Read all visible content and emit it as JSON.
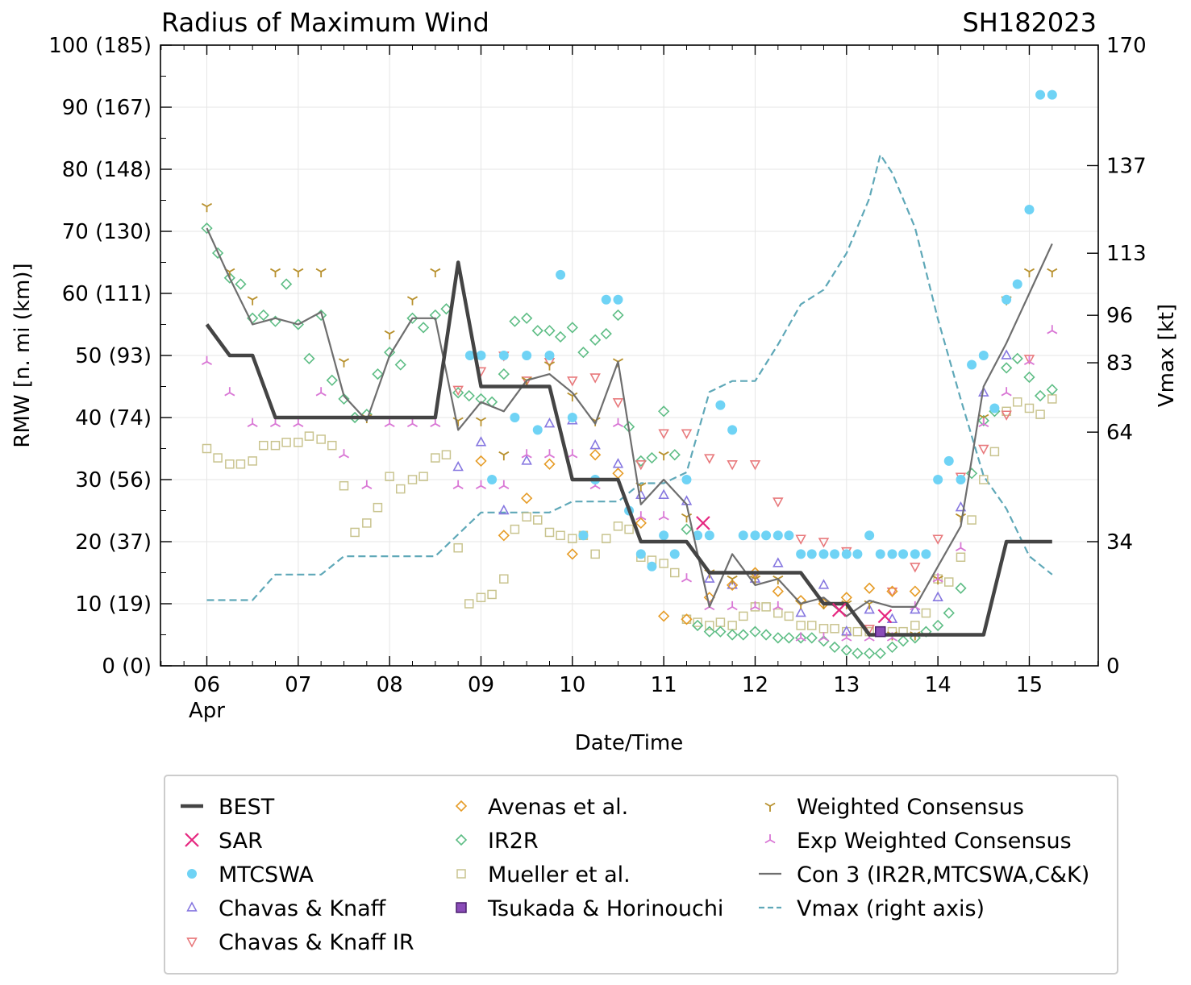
{
  "chart_data": {
    "type": "scatter",
    "title": "Radius of Maximum Wind",
    "storm_id": "SH182023",
    "xlabel": "Date/Time",
    "ylabel": "RMW [n. mi (km)]",
    "ylabel_right": "Vmax [kt]",
    "xlim": [
      5.4935,
      15.75
    ],
    "ylim": [
      0,
      100
    ],
    "ylim_right": [
      0,
      170
    ],
    "x_ticks": [
      {
        "x": 6,
        "label": "06"
      },
      {
        "x": 7,
        "label": "07"
      },
      {
        "x": 8,
        "label": "08"
      },
      {
        "x": 9,
        "label": "09"
      },
      {
        "x": 10,
        "label": "10"
      },
      {
        "x": 11,
        "label": "11"
      },
      {
        "x": 12,
        "label": "12"
      },
      {
        "x": 13,
        "label": "13"
      },
      {
        "x": 14,
        "label": "14"
      },
      {
        "x": 15,
        "label": "15"
      }
    ],
    "x_month_label": "Apr",
    "y_ticks": [
      {
        "y": 0,
        "label": "0 (0)"
      },
      {
        "y": 10,
        "label": "10 (19)"
      },
      {
        "y": 20,
        "label": "20 (37)"
      },
      {
        "y": 30,
        "label": "30 (56)"
      },
      {
        "y": 40,
        "label": "40 (74)"
      },
      {
        "y": 50,
        "label": "50 (93)"
      },
      {
        "y": 60,
        "label": "60 (111)"
      },
      {
        "y": 70,
        "label": "70 (130)"
      },
      {
        "y": 80,
        "label": "80 (148)"
      },
      {
        "y": 90,
        "label": "90 (167)"
      },
      {
        "y": 100,
        "label": "100 (185)"
      }
    ],
    "y_right_ticks": [
      {
        "y": 0,
        "label": "0"
      },
      {
        "y": 34,
        "label": "34"
      },
      {
        "y": 64,
        "label": "64"
      },
      {
        "y": 83,
        "label": "83"
      },
      {
        "y": 96,
        "label": "96"
      },
      {
        "y": 113,
        "label": "113"
      },
      {
        "y": 137,
        "label": "137"
      },
      {
        "y": 170,
        "label": "170"
      }
    ],
    "series": [
      {
        "name": "BEST",
        "kind": "line",
        "color": "#444444",
        "x": [
          6,
          6.25,
          6.5,
          6.75,
          7,
          7.25,
          7.5,
          7.75,
          8,
          8.25,
          8.5,
          8.75,
          9,
          9.25,
          9.5,
          9.75,
          10,
          10.25,
          10.5,
          10.75,
          11,
          11.25,
          11.5,
          11.75,
          12,
          12.25,
          12.5,
          12.75,
          13,
          13.25,
          13.5,
          13.75,
          14,
          14.25,
          14.5,
          14.75,
          15,
          15.25
        ],
        "y": [
          55,
          50,
          50,
          40,
          40,
          40,
          40,
          40,
          40,
          40,
          40,
          65,
          45,
          45,
          45,
          45,
          30,
          30,
          30,
          20,
          20,
          20,
          15,
          15,
          15,
          15,
          15,
          10,
          10,
          5,
          5,
          5,
          5,
          5,
          5,
          20,
          20,
          20
        ]
      },
      {
        "name": "SAR",
        "kind": "x",
        "color": "#e6267f",
        "x": [
          11.43,
          12.92,
          13.42
        ],
        "y": [
          23,
          9,
          8
        ]
      },
      {
        "name": "MTCSWA",
        "kind": "dot",
        "color": "#6fd3f5",
        "x": [
          8.88,
          9,
          9.12,
          9.25,
          9.37,
          9.5,
          9.62,
          9.75,
          9.87,
          10,
          10.12,
          10.25,
          10.37,
          10.5,
          10.62,
          10.75,
          10.87,
          11,
          11.12,
          11.25,
          11.37,
          11.5,
          11.62,
          11.75,
          11.87,
          12,
          12.12,
          12.25,
          12.37,
          12.5,
          12.62,
          12.75,
          12.87,
          13,
          13.12,
          13.25,
          13.37,
          13.5,
          13.62,
          13.75,
          13.87,
          14,
          14.12,
          14.25,
          14.37,
          14.5,
          14.62,
          14.75,
          14.87,
          15,
          15.12,
          15.25
        ],
        "y": [
          50,
          50,
          30,
          50,
          40,
          50,
          38,
          50,
          63,
          40,
          21,
          30,
          59,
          59,
          25,
          18,
          16,
          21,
          18,
          30,
          21,
          21,
          42,
          38,
          21,
          21,
          21,
          21,
          21,
          18,
          18,
          18,
          18,
          18,
          18,
          21,
          18,
          18,
          18,
          18,
          18,
          30,
          33,
          30,
          48.5,
          50,
          41.5,
          59,
          61.5,
          73.5,
          92,
          92
        ]
      },
      {
        "name": "Chavas & Knaff",
        "kind": "tri-up",
        "color": "#8677e0",
        "x": [
          8.75,
          9,
          9.25,
          9.5,
          9.75,
          10,
          10.25,
          10.5,
          10.75,
          11,
          11.25,
          11.5,
          11.75,
          12,
          12.25,
          12.5,
          12.75,
          13,
          13.25,
          13.5,
          13.75,
          14,
          14.25,
          14.5,
          14.75
        ],
        "y": [
          32,
          36,
          25,
          33,
          39,
          39.5,
          35.5,
          32.5,
          27.5,
          27.5,
          26.5,
          14,
          13,
          14,
          16.5,
          8.5,
          13,
          5.5,
          9,
          7.5,
          9,
          11,
          25.5,
          44,
          50
        ]
      },
      {
        "name": "Chavas & Knaff IR",
        "kind": "tri-down",
        "color": "#e8797c",
        "x": [
          8.75,
          9,
          9.25,
          9.5,
          9.75,
          10,
          10.25,
          10.5,
          10.75,
          11,
          11.25,
          11.5,
          11.75,
          12,
          12.25,
          12.5,
          12.75,
          13,
          13.25,
          13.5,
          13.75,
          14,
          14.25,
          14.5,
          14.75,
          15
        ],
        "y": [
          44.5,
          47.5,
          50,
          46,
          49,
          46,
          46.5,
          42.5,
          32.5,
          37.5,
          37.5,
          33.5,
          32.5,
          32.5,
          26.5,
          20.5,
          20,
          18.5,
          6,
          12,
          16,
          20.5,
          30.5,
          35,
          40.5,
          49.5
        ]
      },
      {
        "name": "Avenas et al.",
        "kind": "diamond",
        "color": "#e69c27",
        "x": [
          9,
          9.25,
          9.5,
          9.75,
          10,
          10.25,
          10.5,
          10.75,
          11,
          11.25,
          11.5,
          11.75,
          12,
          12.25,
          12.5,
          12.75,
          13,
          13.25,
          13.5,
          13.75
        ],
        "y": [
          33,
          21,
          27,
          32.5,
          18,
          34,
          31,
          23,
          8,
          7.5,
          11,
          13,
          15,
          12,
          10.5,
          10,
          11,
          12.5,
          12,
          12
        ]
      },
      {
        "name": "IR2R",
        "kind": "diamond",
        "color": "#5ebd85",
        "x": [
          6,
          6.12,
          6.25,
          6.37,
          6.5,
          6.62,
          6.75,
          6.87,
          7,
          7.12,
          7.25,
          7.37,
          7.5,
          7.62,
          7.75,
          7.87,
          8,
          8.12,
          8.25,
          8.37,
          8.5,
          8.62,
          8.75,
          8.87,
          9,
          9.12,
          9.25,
          9.37,
          9.5,
          9.62,
          9.75,
          9.87,
          10,
          10.12,
          10.25,
          10.37,
          10.5,
          10.62,
          10.75,
          10.87,
          11,
          11.12,
          11.25,
          11.37,
          11.5,
          11.62,
          11.75,
          11.87,
          12,
          12.12,
          12.25,
          12.37,
          12.5,
          12.62,
          12.75,
          12.87,
          13,
          13.12,
          13.25,
          13.37,
          13.5,
          13.62,
          13.75,
          13.87,
          14,
          14.12,
          14.25,
          14.37,
          14.5,
          14.62,
          14.75,
          14.87,
          15,
          15.12,
          15.25
        ],
        "y": [
          70.5,
          66.5,
          62.5,
          61.5,
          56,
          56.5,
          55.5,
          61.5,
          55,
          49.5,
          56.5,
          46,
          43,
          40,
          40.5,
          47,
          50.5,
          48.5,
          56,
          54.5,
          56.5,
          57.5,
          44,
          43.5,
          43,
          42.5,
          47,
          55.5,
          56,
          54,
          54,
          53,
          54.5,
          50.5,
          52.5,
          53.5,
          56.5,
          38.5,
          33,
          33.5,
          41,
          34,
          22,
          6.5,
          5.5,
          5.5,
          5,
          5,
          5.5,
          5,
          4.5,
          4.5,
          4.5,
          4.5,
          4,
          3,
          2.5,
          2,
          2,
          2,
          3,
          4,
          4.5,
          5.5,
          6.5,
          8.5,
          12.5,
          31,
          39.5,
          41,
          48,
          49.5,
          46.5,
          43.5,
          44.5
        ]
      },
      {
        "name": "Mueller et al.",
        "kind": "square",
        "color": "#c9c48f",
        "x": [
          6,
          6.12,
          6.25,
          6.37,
          6.5,
          6.62,
          6.75,
          6.87,
          7,
          7.12,
          7.25,
          7.37,
          7.5,
          7.62,
          7.75,
          7.87,
          8,
          8.12,
          8.25,
          8.37,
          8.5,
          8.62,
          8.75,
          8.87,
          9,
          9.12,
          9.25,
          9.37,
          9.5,
          9.62,
          9.75,
          9.87,
          10,
          10.12,
          10.25,
          10.37,
          10.5,
          10.62,
          10.75,
          10.87,
          11,
          11.12,
          11.25,
          11.37,
          11.5,
          11.62,
          11.75,
          11.87,
          12,
          12.12,
          12.25,
          12.37,
          12.5,
          12.62,
          12.75,
          12.87,
          13,
          13.12,
          13.25,
          13.37,
          13.5,
          13.62,
          13.75,
          13.87,
          14,
          14.12,
          14.25,
          14.37,
          14.5,
          14.62,
          14.75,
          14.87,
          15,
          15.12,
          15.25
        ],
        "y": [
          35,
          33.5,
          32.5,
          32.5,
          33,
          35.5,
          35.5,
          36,
          36,
          37,
          36.5,
          35.5,
          29,
          21.5,
          23,
          25.5,
          30.5,
          28.5,
          30,
          30.5,
          33.5,
          34,
          19,
          10,
          11,
          11.5,
          14,
          22,
          24,
          23.5,
          21.5,
          21,
          20.5,
          21,
          18,
          20.5,
          22.5,
          22,
          17.5,
          17,
          16.5,
          15,
          7.5,
          7,
          6.5,
          7,
          6.5,
          8,
          9.5,
          9.5,
          8.5,
          8,
          6.5,
          6.5,
          6,
          6,
          5.5,
          5.5,
          5.5,
          5.5,
          5.5,
          5.5,
          6.5,
          8.5,
          14,
          13.5,
          17.5,
          23.5,
          30,
          34.5,
          41,
          42.5,
          41.5,
          40.5,
          43
        ]
      },
      {
        "name": "Tsukada & Horinouchi",
        "kind": "square-filled",
        "color": "#8a4cb8",
        "x": [
          13.37
        ],
        "y": [
          5.5
        ]
      },
      {
        "name": "Weighted Consensus",
        "kind": "tri-y",
        "color": "#b8912e",
        "x": [
          6,
          6.25,
          6.5,
          6.75,
          7,
          7.25,
          7.5,
          7.75,
          8,
          8.25,
          8.5,
          8.75,
          9,
          9.25,
          9.5,
          9.75,
          10,
          10.25,
          10.5,
          10.75,
          11,
          11.25,
          11.5,
          11.75,
          12,
          12.25,
          12.5,
          12.75,
          13,
          13.25,
          13.5,
          13.75,
          14,
          14.25,
          14.5,
          14.75,
          15,
          15.25
        ],
        "y": [
          74,
          63.5,
          59,
          63.5,
          63.5,
          63.5,
          49,
          40,
          53.5,
          59,
          63.5,
          39.5,
          39.5,
          34,
          46,
          48.5,
          43.5,
          39.5,
          49,
          29,
          34,
          24,
          15,
          14,
          14,
          14,
          10,
          10,
          10,
          10,
          5,
          5,
          14,
          24,
          40,
          59,
          63.5,
          63.5
        ]
      },
      {
        "name": "Exp Weighted Consensus",
        "kind": "tri-ud",
        "color": "#d977d5",
        "x": [
          6,
          6.25,
          6.5,
          6.75,
          7,
          7.25,
          7.5,
          7.75,
          8,
          8.25,
          8.5,
          8.75,
          9,
          9.25,
          9.5,
          9.75,
          10,
          10.25,
          10.5,
          10.75,
          11,
          11.25,
          11.5,
          11.75,
          12,
          12.25,
          12.5,
          12.75,
          13,
          13.25,
          13.5,
          13.75,
          14,
          14.25,
          14.5,
          14.75,
          15,
          15.25
        ],
        "y": [
          49,
          44,
          39,
          39,
          39,
          44,
          34,
          29,
          39,
          39,
          39,
          29,
          29,
          29,
          34,
          34,
          34,
          29,
          39,
          24,
          24,
          14,
          9.5,
          9.5,
          9.5,
          9.5,
          4.5,
          4.5,
          4.5,
          4.5,
          4.5,
          9.5,
          14,
          19,
          39,
          44,
          49,
          54
        ]
      },
      {
        "name": "Con 3 (IR2R,MTCSWA,C&K)",
        "kind": "line",
        "color": "#6e6e6e",
        "x": [
          6,
          6.25,
          6.5,
          6.75,
          7,
          7.25,
          7.5,
          7.75,
          8,
          8.25,
          8.5,
          8.75,
          9,
          9.25,
          9.5,
          9.75,
          10,
          10.25,
          10.5,
          10.75,
          11,
          11.25,
          11.5,
          11.75,
          12,
          12.25,
          12.5,
          12.75,
          13,
          13.25,
          13.5,
          13.75,
          14,
          14.25,
          14.5,
          14.75,
          15,
          15.25
        ],
        "y": [
          70.5,
          62.5,
          55,
          56,
          55,
          57,
          43.5,
          39.5,
          50,
          56,
          56,
          38,
          42.5,
          41,
          46,
          47,
          44,
          39,
          49,
          26,
          30,
          26,
          9.5,
          18,
          13,
          14,
          10,
          11,
          8,
          10.5,
          9.5,
          9.5,
          16,
          22.5,
          45,
          52,
          60,
          68
        ]
      },
      {
        "name": "Vmax (right axis)",
        "kind": "dashed",
        "color": "#5fa8b8",
        "axis": "right",
        "x": [
          6,
          6.25,
          6.5,
          6.75,
          7,
          7.25,
          7.5,
          7.75,
          8,
          8.25,
          8.5,
          8.75,
          9,
          9.25,
          9.5,
          9.75,
          10,
          10.25,
          10.5,
          10.75,
          11,
          11.25,
          11.5,
          11.75,
          12,
          12.25,
          12.5,
          12.75,
          13,
          13.25,
          13.37,
          13.5,
          13.75,
          14,
          14.25,
          14.5,
          14.75,
          15,
          15.25
        ],
        "y": [
          18,
          18,
          18,
          25,
          25,
          25,
          30,
          30,
          30,
          30,
          30,
          36,
          42,
          42,
          42,
          42,
          45,
          45,
          45,
          50,
          50,
          53,
          75,
          78,
          78,
          88,
          99,
          103,
          113,
          128,
          140,
          135,
          120,
          95,
          73,
          52,
          43,
          30,
          25
        ]
      }
    ]
  },
  "legend": {
    "placement": "bottom",
    "entries": [
      "BEST",
      "SAR",
      "MTCSWA",
      "Chavas & Knaff",
      "Chavas & Knaff IR",
      "Avenas et al.",
      "IR2R",
      "Mueller et al.",
      "Tsukada & Horinouchi",
      "Weighted Consensus",
      "Exp Weighted Consensus",
      "Con 3 (IR2R,MTCSWA,C&K)",
      "Vmax (right axis)"
    ]
  }
}
